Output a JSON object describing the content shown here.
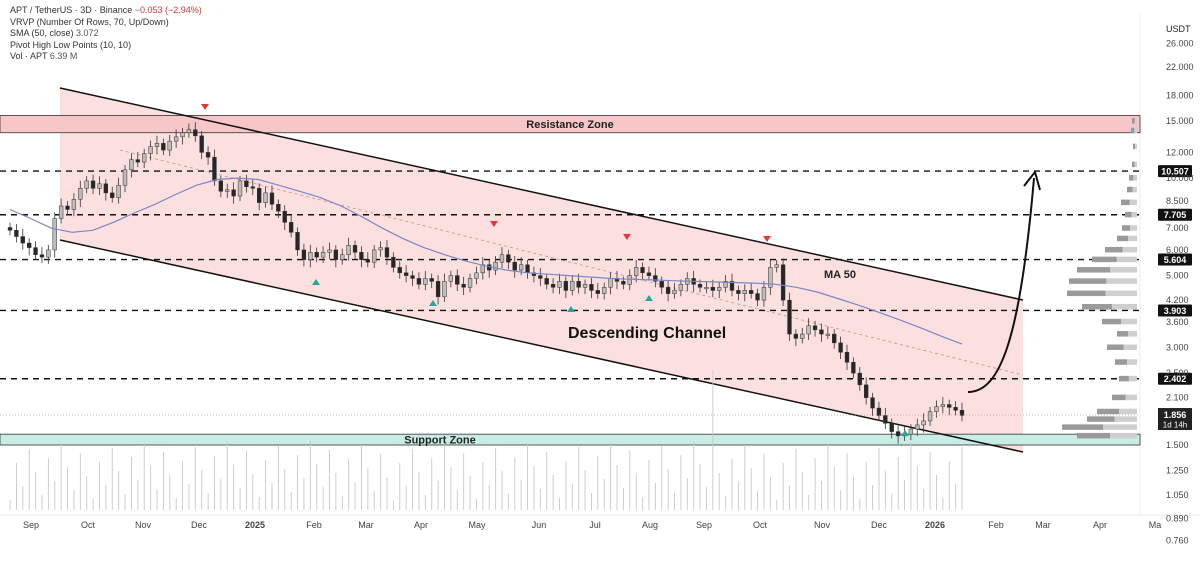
{
  "legend": {
    "symbol": "APT / TetherUS · 3D · Binance",
    "change": "−0.053 (−2.94%)",
    "vrvp": "VRVP (Number Of Rows, 70, Up/Down)",
    "sma_label": "SMA (50, close)",
    "sma_value": "3.072",
    "pivot": "Pivot High Low Points (10, 10)",
    "vol_label": "Vol · APT",
    "vol_value": "6.39 M"
  },
  "colors": {
    "bull": "#bdbdbd",
    "bear": "#262626",
    "channel_fill": "#fbdada",
    "resistance_fill": "#f7c6c8",
    "support_fill": "#c9ece4",
    "ma": "#7b86c7",
    "pivot_high": "#e53935",
    "pivot_low": "#26a69a"
  },
  "chart_data": {
    "type": "candlestick",
    "y_scale": "log",
    "currency": "USDT",
    "ylim": [
      0.74,
      30
    ],
    "y_ticks": [
      "26.000",
      "22.000",
      "18.000",
      "15.000",
      "12.000",
      "10.000",
      "8.500",
      "7.000",
      "6.000",
      "5.000",
      "4.200",
      "3.600",
      "3.000",
      "2.500",
      "2.100",
      "1.800",
      "1.500",
      "1.250",
      "1.050",
      "0.890",
      "0.760"
    ],
    "x_ticks": [
      "Sep",
      "Oct",
      "Nov",
      "Dec",
      "2025",
      "Feb",
      "Mar",
      "Apr",
      "May",
      "Jun",
      "Jul",
      "Aug",
      "Sep",
      "Oct",
      "Nov",
      "Dec",
      "2026",
      "Feb",
      "Mar",
      "Apr",
      "Ma"
    ],
    "levels": [
      {
        "value": "10.507"
      },
      {
        "value": "7.705"
      },
      {
        "value": "5.604"
      },
      {
        "value": "3.903"
      },
      {
        "value": "2.402"
      }
    ],
    "price_label": {
      "value": "1.856",
      "countdown": "1d 14h"
    },
    "zones": {
      "resistance": "Resistance Zone",
      "support": "Support Zone"
    },
    "annotations": {
      "channel": "Descending Channel",
      "ma": "MA 50"
    },
    "series": [
      {
        "name": "APT",
        "closes": [
          6.9,
          6.6,
          6.3,
          6.1,
          5.8,
          5.7,
          6.0,
          7.5,
          8.2,
          8.0,
          8.6,
          9.3,
          9.8,
          9.3,
          9.6,
          9.0,
          8.7,
          9.5,
          10.6,
          11.4,
          11.2,
          11.9,
          12.5,
          12.8,
          12.2,
          13.0,
          13.4,
          13.8,
          14.1,
          13.5,
          12.0,
          11.6,
          9.8,
          9.1,
          9.2,
          8.8,
          9.8,
          9.4,
          9.3,
          8.4,
          9.0,
          8.3,
          7.9,
          7.3,
          6.8,
          6.0,
          5.6,
          5.9,
          5.7,
          5.9,
          6.0,
          5.6,
          5.8,
          6.2,
          5.9,
          5.6,
          5.5,
          6.0,
          6.1,
          5.7,
          5.3,
          5.1,
          5.0,
          4.9,
          4.7,
          4.9,
          4.8,
          4.3,
          4.8,
          5.0,
          4.7,
          4.6,
          4.9,
          5.1,
          5.4,
          5.2,
          5.5,
          5.8,
          5.5,
          5.2,
          5.4,
          5.1,
          5.0,
          4.9,
          4.7,
          4.6,
          4.8,
          4.5,
          4.8,
          4.6,
          4.7,
          4.5,
          4.4,
          4.6,
          4.9,
          4.8,
          4.7,
          5.0,
          5.3,
          5.1,
          5.0,
          4.8,
          4.6,
          4.4,
          4.5,
          4.7,
          4.9,
          4.7,
          4.6,
          4.6,
          4.5,
          4.6,
          4.8,
          4.5,
          4.4,
          4.5,
          4.4,
          4.2,
          4.6,
          5.3,
          5.4,
          4.2,
          3.3,
          3.2,
          3.3,
          3.5,
          3.4,
          3.3,
          3.3,
          3.1,
          2.9,
          2.7,
          2.5,
          2.3,
          2.1,
          1.95,
          1.85,
          1.75,
          1.65,
          1.6,
          1.62,
          1.68,
          1.73,
          1.78,
          1.9,
          1.97,
          2.0,
          1.96,
          1.92,
          1.85
        ]
      },
      {
        "name": "SMA (50, close)",
        "values": [
          8.0,
          7.5,
          7.0,
          6.8,
          6.9,
          7.3,
          7.8,
          8.3,
          8.9,
          9.5,
          9.9,
          10.0,
          9.9,
          9.5,
          9.1,
          8.7,
          8.2,
          7.6,
          7.0,
          6.5,
          6.1,
          5.8,
          5.55,
          5.35,
          5.2,
          5.1,
          5.05,
          5.0,
          4.95,
          4.9,
          4.87,
          4.85,
          4.82,
          4.8,
          4.78,
          4.76,
          4.74,
          4.7,
          4.6,
          4.45,
          4.25,
          4.05,
          3.85,
          3.65,
          3.45,
          3.25,
          3.072
        ]
      }
    ]
  }
}
